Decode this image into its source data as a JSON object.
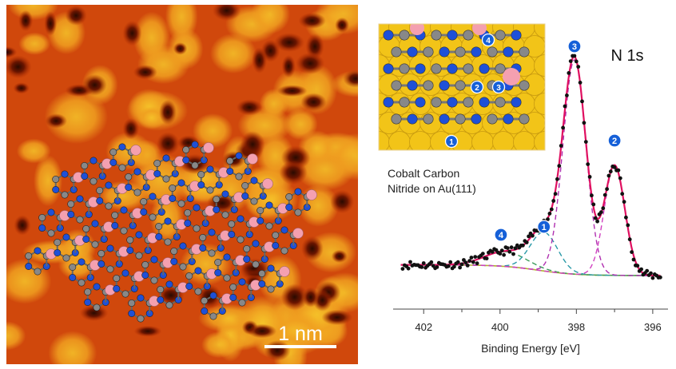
{
  "stm_image": {
    "scale_bar_label": "1 nm"
  },
  "inset": {
    "site_labels": [
      "4",
      "2",
      "3",
      "1"
    ]
  },
  "annotation": {
    "line1": "Cobalt Carbon",
    "line2": "Nitride on Au(111)"
  },
  "colors": {
    "data_points": "#111111",
    "envelope": "#e01060",
    "peak_1": "#2a9aa8",
    "peak_2": "#d040c0",
    "peak_3": "#b030b0",
    "peak_4": "#3a9a5a",
    "background": "#b0b030",
    "badge": "#1560d8",
    "cobalt": "#f4a0b0",
    "carbon": "#888888",
    "nitrogen": "#1e50d8",
    "gold": "#f2c418"
  },
  "chart_data": {
    "type": "scatter",
    "title": "N 1s",
    "xlabel": "Binding Energy [eV]",
    "ylabel": "",
    "xlim": [
      402.8,
      395.6
    ],
    "x_reversed": true,
    "xticks": [
      "402",
      "400",
      "398",
      "396"
    ],
    "xtick_values": [
      402,
      400,
      398,
      396
    ],
    "peaks": [
      {
        "label": "4",
        "center": 399.85,
        "height": 0.055,
        "width": 0.55
      },
      {
        "label": "1",
        "center": 398.85,
        "height": 0.145,
        "width": 0.36
      },
      {
        "label": "3",
        "center": 398.05,
        "height": 0.8,
        "width": 0.3
      },
      {
        "label": "2",
        "center": 397.0,
        "height": 0.41,
        "width": 0.27
      }
    ],
    "background": {
      "low": 0.0,
      "high": 0.04,
      "step_center": 399.0,
      "step_width": 0.5
    },
    "legend": "none",
    "grid": false
  }
}
